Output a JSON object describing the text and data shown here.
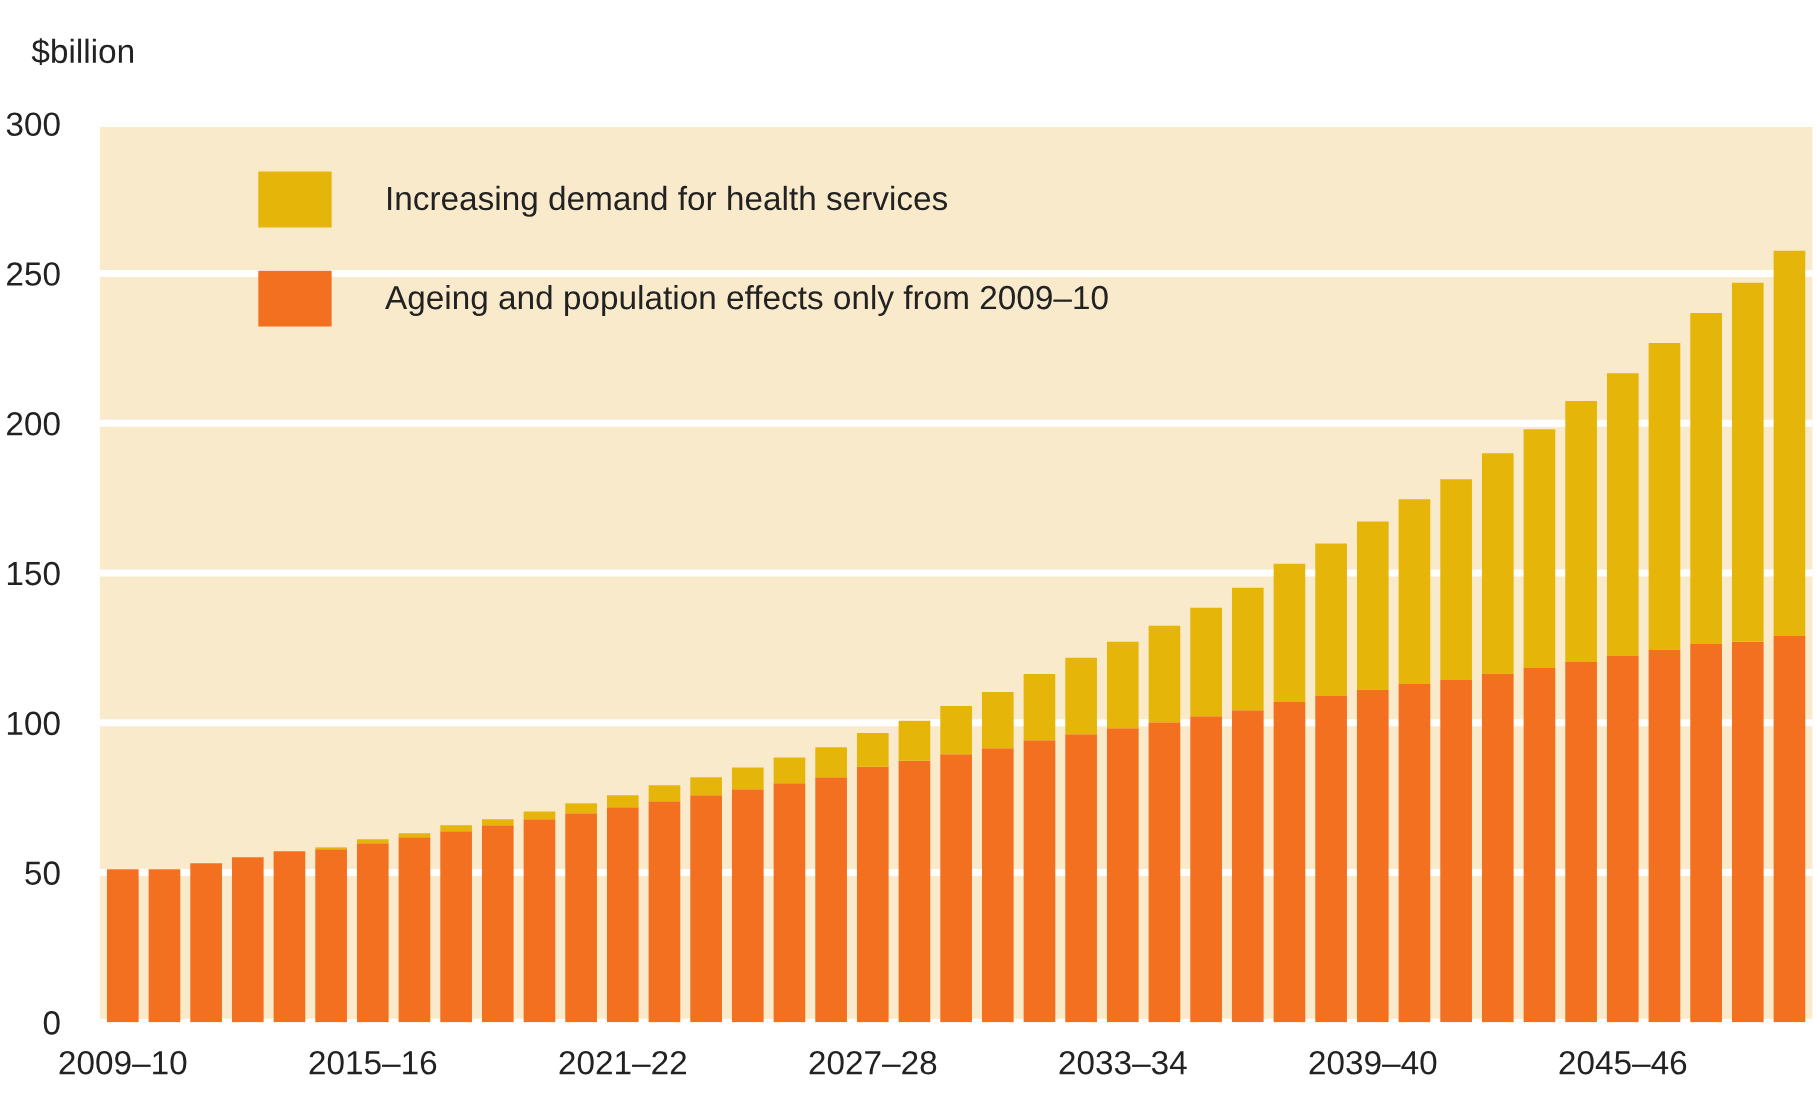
{
  "chart_data": {
    "type": "bar",
    "stacked": true,
    "ylabel": "$billion",
    "categories": [
      "2009–10",
      null,
      null,
      null,
      null,
      null,
      "2015–16",
      null,
      null,
      null,
      null,
      null,
      "2021–22",
      null,
      null,
      null,
      null,
      null,
      "2027–28",
      null,
      null,
      null,
      null,
      null,
      "2033–34",
      null,
      null,
      null,
      null,
      null,
      "2039–40",
      null,
      null,
      null,
      null,
      null,
      "2045–46",
      null,
      null,
      null,
      null
    ],
    "series": [
      {
        "name": "Ageing and population effects only from 2009–10",
        "color": "#f37021",
        "values": [
          51.1,
          51.1,
          53.1,
          55.1,
          57.1,
          57.8,
          59.8,
          61.8,
          63.8,
          65.8,
          67.8,
          69.8,
          71.8,
          73.8,
          75.8,
          77.8,
          79.8,
          81.8,
          85.3,
          87.3,
          89.5,
          91.5,
          94.2,
          96.2,
          98.2,
          100.2,
          102.2,
          104.2,
          106.9,
          108.9,
          110.9,
          112.9,
          114.3,
          116.3,
          118.3,
          120.3,
          122.3,
          124.3,
          126.3,
          127.0,
          129.0
        ]
      },
      {
        "name": "Increasing demand for health services",
        "color": "#e6b50a",
        "values": [
          0,
          0,
          0,
          0,
          0,
          0.6,
          1.3,
          1.3,
          2.0,
          2.0,
          2.6,
          3.3,
          4.0,
          5.3,
          6.0,
          7.3,
          8.6,
          10.0,
          11.3,
          13.4,
          16.1,
          18.8,
          22.1,
          25.5,
          28.8,
          32.2,
          36.2,
          40.9,
          46.2,
          50.9,
          56.3,
          61.7,
          67.0,
          73.7,
          79.7,
          87.1,
          94.4,
          102.5,
          110.5,
          119.9,
          128.6
        ]
      }
    ],
    "ylim": [
      0,
      300
    ],
    "yticks": [
      0,
      50,
      100,
      150,
      200,
      250,
      300
    ],
    "grid": "y",
    "legend": "top left"
  }
}
